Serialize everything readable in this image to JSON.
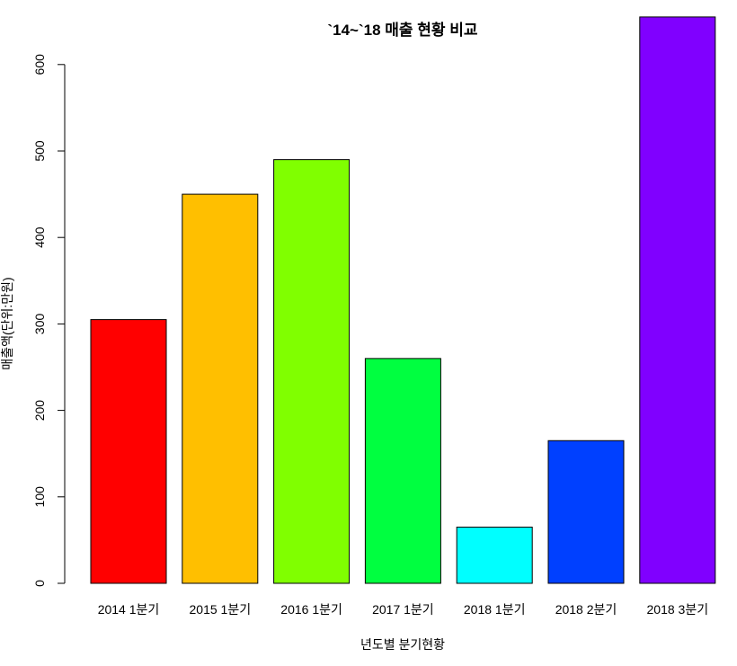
{
  "chart_data": {
    "type": "bar",
    "title": "`14~`18 매출 현황 비교",
    "xlabel": "년도별 분기현황",
    "ylabel": "매출액(단위:만원)",
    "categories": [
      "2014 1분기",
      "2015 1분기",
      "2016 1분기",
      "2017 1분기",
      "2018 1분기",
      "2018 2분기",
      "2018 3분기"
    ],
    "values": [
      305,
      450,
      490,
      260,
      65,
      165,
      655
    ],
    "colors": [
      "#FF0000",
      "#FFBF00",
      "#80FF00",
      "#00FF40",
      "#00FFFF",
      "#0040FF",
      "#8000FF"
    ],
    "ylim": [
      0,
      655
    ],
    "yticks": [
      0,
      100,
      200,
      300,
      400,
      500,
      600
    ],
    "grid": false,
    "legend": "none"
  }
}
